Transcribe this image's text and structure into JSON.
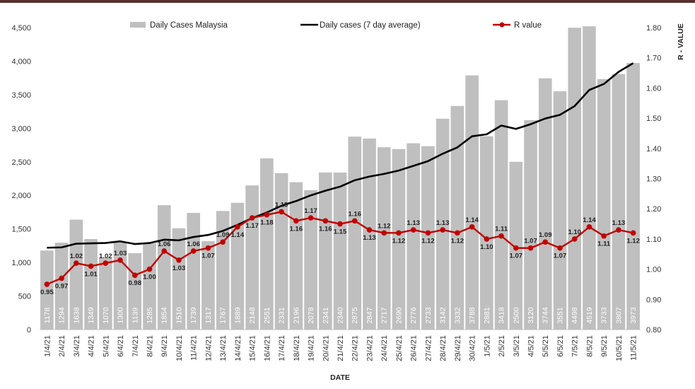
{
  "chart_data": {
    "type": "bar+line",
    "title": "",
    "xlabel": "DATE",
    "ylabel": "",
    "y2label": "R - VALUE",
    "categories": [
      "1/4/21",
      "2/4/21",
      "3/4/21",
      "4/4/21",
      "5/4/21",
      "6/4/21",
      "7/4/21",
      "8/4/21",
      "9/4/21",
      "10/4/21",
      "11/4/21",
      "12/4/21",
      "13/4/21",
      "14/4/21",
      "15/4/21",
      "16/4/21",
      "17/4/21",
      "18/4/21",
      "19/4/21",
      "20/4/21",
      "21/4/21",
      "22/4/21",
      "23/4/21",
      "24/4/21",
      "25/4/21",
      "26/4/21",
      "27/4/21",
      "28/4/21",
      "29/4/21",
      "30/4/21",
      "1/5/21",
      "2/5/21",
      "3/5/21",
      "4/5/21",
      "5/5/21",
      "6/5/21",
      "7/5/21",
      "8/5/21",
      "9/5/21",
      "10/5/21",
      "11/5/21"
    ],
    "series": [
      {
        "name": "Daily Cases Malaysia",
        "kind": "bar",
        "axis": "left",
        "color": "#bfbfbf",
        "values": [
          1178,
          1294,
          1638,
          1349,
          1070,
          1300,
          1139,
          1285,
          1854,
          1510,
          1739,
          1317,
          1767,
          1889,
          2148,
          2551,
          2331,
          2196,
          2078,
          2341,
          2340,
          2875,
          2847,
          2717,
          2690,
          2776,
          2733,
          3142,
          3332,
          3788,
          2881,
          3418,
          2500,
          3120,
          3744,
          3551,
          4498,
          4519,
          3733,
          3807,
          3973
        ],
        "value_labels": [
          "1178",
          "1294",
          "1638",
          "1349",
          "1070",
          "1300",
          "1139",
          "1285",
          "1854",
          "1510",
          "1739",
          "1317",
          "1767",
          "1889",
          "2148",
          "2551",
          "2331",
          "2196",
          "2078",
          "2341",
          "2340",
          "2875",
          "2847",
          "2717",
          "2690",
          "2776",
          "2733",
          "3142",
          "3332",
          "3788",
          "2881",
          "3418",
          "2500",
          "3120",
          "3744",
          "3551",
          "4498",
          "4519",
          "3733",
          "3807",
          "3973"
        ]
      },
      {
        "name": "Daily cases (7 day average)",
        "kind": "line",
        "axis": "left",
        "color": "#000000",
        "values": [
          1220,
          1225,
          1280,
          1285,
          1290,
          1315,
          1275,
          1290,
          1340,
          1330,
          1380,
          1410,
          1470,
          1560,
          1660,
          1745,
          1845,
          1915,
          2000,
          2070,
          2130,
          2225,
          2280,
          2320,
          2370,
          2440,
          2510,
          2620,
          2715,
          2880,
          2910,
          3040,
          2990,
          3060,
          3145,
          3200,
          3330,
          3570,
          3660,
          3840,
          3970
        ]
      },
      {
        "name": "R value",
        "kind": "line-marker",
        "axis": "right",
        "color": "#c00000",
        "values": [
          0.95,
          0.97,
          1.02,
          1.01,
          1.02,
          1.03,
          0.98,
          1.0,
          1.06,
          1.03,
          1.06,
          1.07,
          1.09,
          1.14,
          1.17,
          1.18,
          1.19,
          1.16,
          1.17,
          1.16,
          1.15,
          1.16,
          1.13,
          1.12,
          1.12,
          1.13,
          1.12,
          1.13,
          1.12,
          1.14,
          1.1,
          1.11,
          1.07,
          1.07,
          1.09,
          1.07,
          1.1,
          1.14,
          1.11,
          1.13,
          1.12
        ],
        "value_labels": [
          "0.95",
          "0.97",
          "1.02",
          "1.01",
          "1.02",
          "1.03",
          "0.98",
          "1.00",
          "1.06",
          "1.03",
          "1.06",
          "1.07",
          "1.09",
          "1.14",
          "1.17",
          "1.18",
          "1.19",
          "1.16",
          "1.17",
          "1.16",
          "1.15",
          "1.16",
          "1.13",
          "1.12",
          "1.12",
          "1.13",
          "1.12",
          "1.13",
          "1.12",
          "1.14",
          "1.10",
          "1.11",
          "1.07",
          "1.07",
          "1.09",
          "1.07",
          "1.10",
          "1.14",
          "1.11",
          "1.13",
          "1.12"
        ]
      }
    ],
    "ylim": [
      0,
      4500
    ],
    "y_ticks": [
      "0",
      "500",
      "1,000",
      "1,500",
      "2,000",
      "2,500",
      "3,000",
      "3,500",
      "4,000",
      "4,500"
    ],
    "y2lim": [
      0.8,
      1.8
    ],
    "y2_ticks": [
      "0.80",
      "0.90",
      "1.00",
      "1.10",
      "1.20",
      "1.30",
      "1.40",
      "1.50",
      "1.60",
      "1.70",
      "1.80"
    ],
    "grid": false,
    "legend_position": "top"
  }
}
